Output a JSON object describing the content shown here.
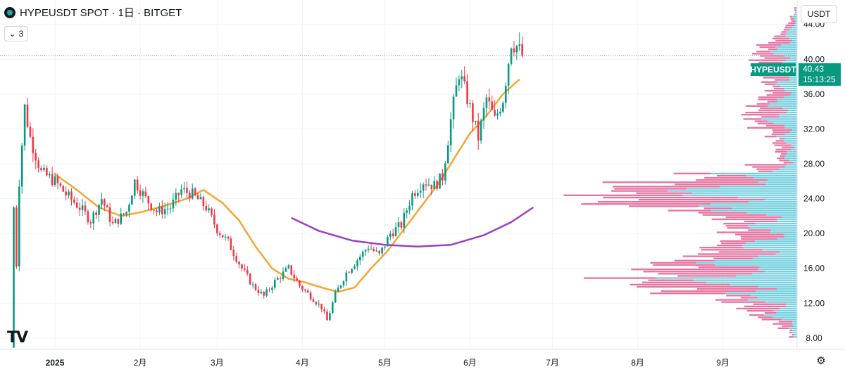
{
  "header": {
    "title": "HYPEUSDT SPOT · 1日 · BITGET",
    "indicator_count": "3",
    "indicator_chevron": "⌄"
  },
  "currency_label": "USDT",
  "last_price": {
    "symbol": "HYPEUSDT",
    "price": "40.43",
    "countdown": "15:13:25"
  },
  "logo_text": "TV",
  "settings_glyph": "⚙",
  "colors": {
    "up": "#089981",
    "down": "#f23645",
    "ma_short": "#f7a530",
    "ma_long": "#9c3fc0",
    "vp_up": "#5ec8d8",
    "vp_down": "#e05a8f"
  },
  "chart_data": {
    "type": "candlestick",
    "y_axis": {
      "ticks": [
        8,
        12,
        16,
        20,
        24,
        28,
        32,
        36,
        40,
        44
      ],
      "labels": [
        "8.00",
        "12.00",
        "16.00",
        "20.00",
        "24.00",
        "28.00",
        "32.00",
        "36.00",
        "40.00",
        "44.00"
      ],
      "range": [
        6.7,
        46.8
      ]
    },
    "x_axis": {
      "labels": [
        "2025",
        "2月",
        "3月",
        "4月",
        "5月",
        "6月",
        "7月",
        "8月",
        "9月"
      ],
      "dates": [
        "2025-01-01",
        "2025-02-01",
        "2025-03-01",
        "2025-04-01",
        "2025-05-01",
        "2025-06-01",
        "2025-07-01",
        "2025-08-01",
        "2025-09-01"
      ],
      "range": [
        "2024-12-12",
        "2025-09-28"
      ]
    },
    "price_anchors": [
      [
        "2024-12-17",
        6.9
      ],
      [
        "2024-12-19",
        26
      ],
      [
        "2024-12-21",
        34.5
      ],
      [
        "2024-12-23",
        31
      ],
      [
        "2024-12-27",
        27
      ],
      [
        "2025-01-01",
        26
      ],
      [
        "2025-01-05",
        24.5
      ],
      [
        "2025-01-10",
        23
      ],
      [
        "2025-01-14",
        21.5
      ],
      [
        "2025-01-18",
        24
      ],
      [
        "2025-01-22",
        21
      ],
      [
        "2025-01-27",
        22.5
      ],
      [
        "2025-01-30",
        26
      ],
      [
        "2025-02-03",
        24
      ],
      [
        "2025-02-07",
        22.5
      ],
      [
        "2025-02-12",
        23
      ],
      [
        "2025-02-16",
        25
      ],
      [
        "2025-02-20",
        24.5
      ],
      [
        "2025-02-25",
        23
      ],
      [
        "2025-03-01",
        20.5
      ],
      [
        "2025-03-05",
        19
      ],
      [
        "2025-03-10",
        16
      ],
      [
        "2025-03-14",
        14
      ],
      [
        "2025-03-18",
        12.8
      ],
      [
        "2025-03-22",
        14.5
      ],
      [
        "2025-03-27",
        16
      ],
      [
        "2025-03-31",
        14
      ],
      [
        "2025-04-04",
        12.8
      ],
      [
        "2025-04-08",
        11.5
      ],
      [
        "2025-04-10",
        10
      ],
      [
        "2025-04-13",
        13
      ],
      [
        "2025-04-17",
        15.5
      ],
      [
        "2025-04-21",
        17
      ],
      [
        "2025-04-25",
        18.5
      ],
      [
        "2025-04-29",
        17.5
      ],
      [
        "2025-05-03",
        20
      ],
      [
        "2025-05-07",
        21
      ],
      [
        "2025-05-11",
        24.5
      ],
      [
        "2025-05-15",
        26
      ],
      [
        "2025-05-19",
        25.5
      ],
      [
        "2025-05-22",
        26.5
      ],
      [
        "2025-05-25",
        33
      ],
      [
        "2025-05-28",
        38.5
      ],
      [
        "2025-05-31",
        35.5
      ],
      [
        "2025-06-04",
        31
      ],
      [
        "2025-06-07",
        35.5
      ],
      [
        "2025-06-10",
        33
      ],
      [
        "2025-06-13",
        35.5
      ],
      [
        "2025-06-16",
        42
      ],
      [
        "2025-06-18",
        41.5
      ],
      [
        "2025-06-20",
        40.4
      ]
    ],
    "ma_short": [
      [
        "2025-01-01",
        26.8
      ],
      [
        "2025-01-09",
        25
      ],
      [
        "2025-01-17",
        23
      ],
      [
        "2025-01-25",
        22
      ],
      [
        "2025-02-02",
        22.5
      ],
      [
        "2025-02-10",
        23.2
      ],
      [
        "2025-02-18",
        24
      ],
      [
        "2025-02-24",
        25
      ],
      [
        "2025-03-03",
        23.5
      ],
      [
        "2025-03-09",
        21.5
      ],
      [
        "2025-03-15",
        18.5
      ],
      [
        "2025-03-21",
        16
      ],
      [
        "2025-03-27",
        14.8
      ],
      [
        "2025-04-02",
        14.4
      ],
      [
        "2025-04-08",
        13.8
      ],
      [
        "2025-04-14",
        13.3
      ],
      [
        "2025-04-20",
        13.8
      ],
      [
        "2025-04-26",
        16
      ],
      [
        "2025-05-02",
        18
      ],
      [
        "2025-05-08",
        20.5
      ],
      [
        "2025-05-14",
        23
      ],
      [
        "2025-05-20",
        25.5
      ],
      [
        "2025-05-26",
        28.5
      ],
      [
        "2025-06-01",
        31.5
      ],
      [
        "2025-06-07",
        33.5
      ],
      [
        "2025-06-13",
        36
      ],
      [
        "2025-06-19",
        37.7
      ]
    ],
    "ma_long": [
      [
        "2025-03-28",
        21.8
      ],
      [
        "2025-04-07",
        20.3
      ],
      [
        "2025-04-19",
        19.2
      ],
      [
        "2025-05-01",
        18.7
      ],
      [
        "2025-05-13",
        18.5
      ],
      [
        "2025-05-25",
        18.7
      ],
      [
        "2025-06-06",
        19.8
      ],
      [
        "2025-06-16",
        21.3
      ],
      [
        "2025-06-24",
        23
      ]
    ],
    "last_price": 40.43
  }
}
